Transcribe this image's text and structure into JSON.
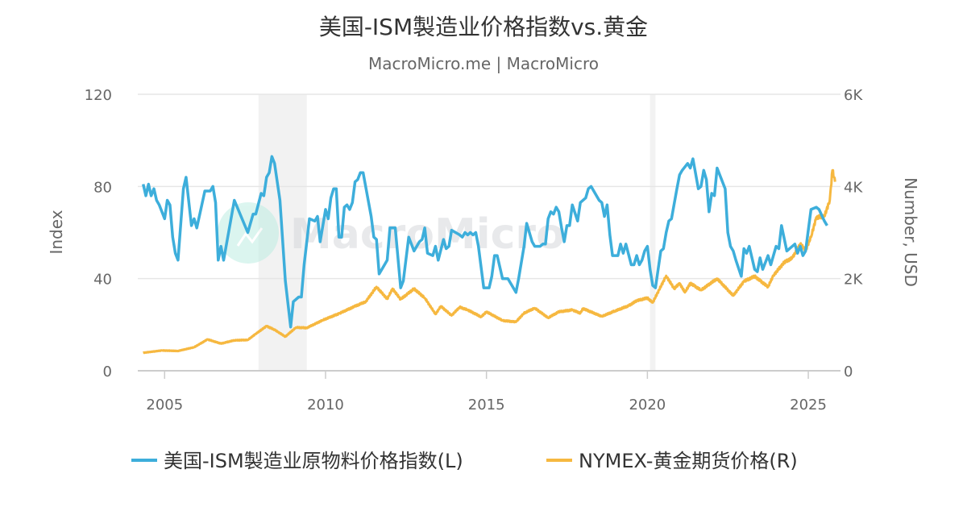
{
  "chart_data": {
    "type": "line",
    "title": "美国-ISM製造业价格指数vs.黄金",
    "subtitle": "MacroMicro.me | MacroMicro",
    "watermark": "MacroMicro",
    "xlabel": "",
    "ylabel_left": "Index",
    "ylabel_right": "Number, USD",
    "xlim": [
      "2004-03",
      "2026-01"
    ],
    "ylim_left": [
      0,
      120
    ],
    "ylim_right": [
      0,
      6000
    ],
    "x_ticks": [
      "2005",
      "2010",
      "2015",
      "2020",
      "2025"
    ],
    "y_ticks_left": [
      "0",
      "40",
      "80",
      "120"
    ],
    "y_ticks_right": [
      "0",
      "2K",
      "4K",
      "6K"
    ],
    "grid": true,
    "legend_position": "bottom",
    "recession_shading": [
      [
        "2007-12",
        "2009-06"
      ],
      [
        "2020-02",
        "2020-04"
      ]
    ],
    "series": [
      {
        "name": "美国-ISM製造业原物料价格指数(L)",
        "axis": "left",
        "color": "#3DAEDB",
        "points": [
          [
            "2004-05",
            81
          ],
          [
            "2004-06",
            76
          ],
          [
            "2004-07",
            81
          ],
          [
            "2004-08",
            76
          ],
          [
            "2004-09",
            79
          ],
          [
            "2004-10",
            74
          ],
          [
            "2004-11",
            72
          ],
          [
            "2005-01",
            66
          ],
          [
            "2005-02",
            74
          ],
          [
            "2005-03",
            72
          ],
          [
            "2005-04",
            58
          ],
          [
            "2005-05",
            51
          ],
          [
            "2005-06",
            48
          ],
          [
            "2005-08",
            79
          ],
          [
            "2005-09",
            84
          ],
          [
            "2005-11",
            63
          ],
          [
            "2005-12",
            66
          ],
          [
            "2006-01",
            62
          ],
          [
            "2006-04",
            78
          ],
          [
            "2006-06",
            78
          ],
          [
            "2006-07",
            80
          ],
          [
            "2006-08",
            73
          ],
          [
            "2006-09",
            48
          ],
          [
            "2006-10",
            54
          ],
          [
            "2006-11",
            48
          ],
          [
            "2007-03",
            74
          ],
          [
            "2007-08",
            60
          ],
          [
            "2007-10",
            68
          ],
          [
            "2007-11",
            68
          ],
          [
            "2008-01",
            77
          ],
          [
            "2008-02",
            76
          ],
          [
            "2008-03",
            84
          ],
          [
            "2008-04",
            86
          ],
          [
            "2008-05",
            93
          ],
          [
            "2008-06",
            90
          ],
          [
            "2008-08",
            74
          ],
          [
            "2008-10",
            39
          ],
          [
            "2008-12",
            19
          ],
          [
            "2009-01",
            30
          ],
          [
            "2009-03",
            32
          ],
          [
            "2009-04",
            32
          ],
          [
            "2009-05",
            46
          ],
          [
            "2009-07",
            66
          ],
          [
            "2009-09",
            65
          ],
          [
            "2009-10",
            67
          ],
          [
            "2009-11",
            56
          ],
          [
            "2010-01",
            70
          ],
          [
            "2010-02",
            66
          ],
          [
            "2010-03",
            75
          ],
          [
            "2010-04",
            79
          ],
          [
            "2010-05",
            79
          ],
          [
            "2010-06",
            58
          ],
          [
            "2010-07",
            58
          ],
          [
            "2010-08",
            71
          ],
          [
            "2010-09",
            72
          ],
          [
            "2010-10",
            70
          ],
          [
            "2010-11",
            73
          ],
          [
            "2010-12",
            82
          ],
          [
            "2011-01",
            83
          ],
          [
            "2011-02",
            86
          ],
          [
            "2011-03",
            86
          ],
          [
            "2011-06",
            67
          ],
          [
            "2011-07",
            58
          ],
          [
            "2011-08",
            57
          ],
          [
            "2011-09",
            42
          ],
          [
            "2011-11",
            46
          ],
          [
            "2011-12",
            48
          ],
          [
            "2012-01",
            62
          ],
          [
            "2012-03",
            62
          ],
          [
            "2012-05",
            36
          ],
          [
            "2012-06",
            39
          ],
          [
            "2012-08",
            58
          ],
          [
            "2012-10",
            52
          ],
          [
            "2012-12",
            56
          ],
          [
            "2013-01",
            57
          ],
          [
            "2013-02",
            62
          ],
          [
            "2013-03",
            51
          ],
          [
            "2013-05",
            50
          ],
          [
            "2013-06",
            54
          ],
          [
            "2013-07",
            48
          ],
          [
            "2013-09",
            57
          ],
          [
            "2013-10",
            53
          ],
          [
            "2013-11",
            54
          ],
          [
            "2013-12",
            61
          ],
          [
            "2014-03",
            59
          ],
          [
            "2014-04",
            58
          ],
          [
            "2014-05",
            60
          ],
          [
            "2014-06",
            59
          ],
          [
            "2014-07",
            60
          ],
          [
            "2014-08",
            59
          ],
          [
            "2014-09",
            60
          ],
          [
            "2014-10",
            54
          ],
          [
            "2014-11",
            45
          ],
          [
            "2014-12",
            36
          ],
          [
            "2015-02",
            36
          ],
          [
            "2015-03",
            41
          ],
          [
            "2015-04",
            50
          ],
          [
            "2015-05",
            50
          ],
          [
            "2015-07",
            40
          ],
          [
            "2015-09",
            40
          ],
          [
            "2015-11",
            36
          ],
          [
            "2015-12",
            34
          ],
          [
            "2016-01",
            40
          ],
          [
            "2016-03",
            54
          ],
          [
            "2016-04",
            64
          ],
          [
            "2016-06",
            56
          ],
          [
            "2016-07",
            54
          ],
          [
            "2016-09",
            54
          ],
          [
            "2016-10",
            55
          ],
          [
            "2016-11",
            55
          ],
          [
            "2016-12",
            66
          ],
          [
            "2017-01",
            69
          ],
          [
            "2017-02",
            68
          ],
          [
            "2017-03",
            71
          ],
          [
            "2017-04",
            69
          ],
          [
            "2017-05",
            62
          ],
          [
            "2017-06",
            56
          ],
          [
            "2017-07",
            63
          ],
          [
            "2017-08",
            63
          ],
          [
            "2017-09",
            72
          ],
          [
            "2017-11",
            65
          ],
          [
            "2017-12",
            73
          ],
          [
            "2018-02",
            75
          ],
          [
            "2018-03",
            79
          ],
          [
            "2018-04",
            80
          ],
          [
            "2018-07",
            74
          ],
          [
            "2018-08",
            73
          ],
          [
            "2018-09",
            67
          ],
          [
            "2018-10",
            72
          ],
          [
            "2018-11",
            59
          ],
          [
            "2018-12",
            50
          ],
          [
            "2019-02",
            50
          ],
          [
            "2019-03",
            55
          ],
          [
            "2019-04",
            51
          ],
          [
            "2019-05",
            55
          ],
          [
            "2019-07",
            46
          ],
          [
            "2019-08",
            46
          ],
          [
            "2019-09",
            50
          ],
          [
            "2019-10",
            46
          ],
          [
            "2019-11",
            48
          ],
          [
            "2019-12",
            52
          ],
          [
            "2020-01",
            54
          ],
          [
            "2020-02",
            44
          ],
          [
            "2020-03",
            37
          ],
          [
            "2020-04",
            36
          ],
          [
            "2020-06",
            52
          ],
          [
            "2020-07",
            53
          ],
          [
            "2020-08",
            60
          ],
          [
            "2020-09",
            65
          ],
          [
            "2020-10",
            66
          ],
          [
            "2020-12",
            79
          ],
          [
            "2021-01",
            85
          ],
          [
            "2021-02",
            87
          ],
          [
            "2021-04",
            90
          ],
          [
            "2021-05",
            88
          ],
          [
            "2021-06",
            92
          ],
          [
            "2021-08",
            79
          ],
          [
            "2021-09",
            80
          ],
          [
            "2021-10",
            87
          ],
          [
            "2021-11",
            83
          ],
          [
            "2021-12",
            69
          ],
          [
            "2022-01",
            77
          ],
          [
            "2022-02",
            76
          ],
          [
            "2022-03",
            88
          ],
          [
            "2022-04",
            85
          ],
          [
            "2022-06",
            79
          ],
          [
            "2022-07",
            60
          ],
          [
            "2022-08",
            54
          ],
          [
            "2022-09",
            52
          ],
          [
            "2022-10",
            48
          ],
          [
            "2022-12",
            41
          ],
          [
            "2023-01",
            53
          ],
          [
            "2023-02",
            51
          ],
          [
            "2023-03",
            54
          ],
          [
            "2023-05",
            44
          ],
          [
            "2023-06",
            43
          ],
          [
            "2023-07",
            49
          ],
          [
            "2023-08",
            44
          ],
          [
            "2023-10",
            50
          ],
          [
            "2023-11",
            46
          ],
          [
            "2024-01",
            54
          ],
          [
            "2024-02",
            53
          ],
          [
            "2024-03",
            63
          ],
          [
            "2024-05",
            52
          ],
          [
            "2024-08",
            55
          ],
          [
            "2024-09",
            51
          ],
          [
            "2024-10",
            54
          ],
          [
            "2024-11",
            50
          ],
          [
            "2024-12",
            52
          ],
          [
            "2025-02",
            70
          ],
          [
            "2025-04",
            71
          ],
          [
            "2025-05",
            70
          ],
          [
            "2025-07",
            65
          ],
          [
            "2025-08",
            63
          ]
        ]
      },
      {
        "name": "NYMEX-黄金期货价格(R)",
        "axis": "right",
        "color": "#F6B840",
        "points": [
          [
            "2004-05",
            390
          ],
          [
            "2004-12",
            440
          ],
          [
            "2005-06",
            430
          ],
          [
            "2005-12",
            510
          ],
          [
            "2006-05",
            680
          ],
          [
            "2006-10",
            590
          ],
          [
            "2007-03",
            660
          ],
          [
            "2007-08",
            670
          ],
          [
            "2007-11",
            800
          ],
          [
            "2008-03",
            970
          ],
          [
            "2008-06",
            890
          ],
          [
            "2008-10",
            740
          ],
          [
            "2009-02",
            940
          ],
          [
            "2009-06",
            930
          ],
          [
            "2009-12",
            1100
          ],
          [
            "2010-06",
            1240
          ],
          [
            "2010-12",
            1400
          ],
          [
            "2011-04",
            1500
          ],
          [
            "2011-08",
            1820
          ],
          [
            "2011-12",
            1560
          ],
          [
            "2012-02",
            1780
          ],
          [
            "2012-05",
            1550
          ],
          [
            "2012-10",
            1780
          ],
          [
            "2013-02",
            1580
          ],
          [
            "2013-06",
            1230
          ],
          [
            "2013-08",
            1400
          ],
          [
            "2013-12",
            1200
          ],
          [
            "2014-03",
            1380
          ],
          [
            "2014-06",
            1320
          ],
          [
            "2014-11",
            1170
          ],
          [
            "2015-01",
            1280
          ],
          [
            "2015-07",
            1090
          ],
          [
            "2015-12",
            1060
          ],
          [
            "2016-03",
            1250
          ],
          [
            "2016-07",
            1360
          ],
          [
            "2016-12",
            1150
          ],
          [
            "2017-04",
            1280
          ],
          [
            "2017-09",
            1320
          ],
          [
            "2017-12",
            1250
          ],
          [
            "2018-01",
            1350
          ],
          [
            "2018-08",
            1180
          ],
          [
            "2019-01",
            1300
          ],
          [
            "2019-06",
            1410
          ],
          [
            "2019-09",
            1520
          ],
          [
            "2020-01",
            1580
          ],
          [
            "2020-03",
            1480
          ],
          [
            "2020-08",
            2060
          ],
          [
            "2020-11",
            1780
          ],
          [
            "2021-01",
            1900
          ],
          [
            "2021-03",
            1700
          ],
          [
            "2021-05",
            1900
          ],
          [
            "2021-09",
            1750
          ],
          [
            "2022-03",
            2000
          ],
          [
            "2022-09",
            1630
          ],
          [
            "2023-01",
            1940
          ],
          [
            "2023-05",
            2050
          ],
          [
            "2023-10",
            1820
          ],
          [
            "2023-12",
            2070
          ],
          [
            "2024-04",
            2350
          ],
          [
            "2024-07",
            2450
          ],
          [
            "2024-10",
            2750
          ],
          [
            "2024-12",
            2620
          ],
          [
            "2025-02",
            2900
          ],
          [
            "2025-04",
            3330
          ],
          [
            "2025-07",
            3350
          ],
          [
            "2025-09",
            3700
          ],
          [
            "2025-10",
            4350
          ],
          [
            "2025-11",
            4100
          ]
        ]
      }
    ]
  }
}
